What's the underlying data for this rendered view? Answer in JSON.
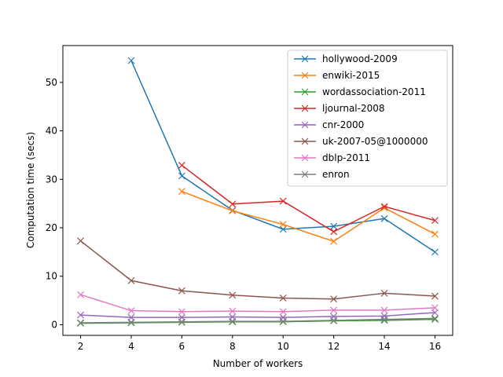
{
  "chart_data": {
    "type": "line",
    "title": "",
    "xlabel": "Number of workers",
    "ylabel": "Computation time (secs)",
    "xlim": [
      1.3,
      16.7
    ],
    "ylim": [
      -2.2,
      57.6
    ],
    "xticks": [
      2,
      4,
      6,
      8,
      10,
      12,
      14,
      16
    ],
    "yticks": [
      0,
      10,
      20,
      30,
      40,
      50
    ],
    "grid": false,
    "legend_position": "top-right",
    "marker": "x",
    "series": [
      {
        "name": "hollywood-2009",
        "color": "#1f77b4",
        "x": [
          4,
          6,
          8,
          10,
          12,
          14,
          16
        ],
        "y": [
          54.5,
          30.7,
          23.6,
          19.7,
          20.3,
          21.9,
          15.0
        ]
      },
      {
        "name": "enwiki-2015",
        "color": "#ff7f0e",
        "x": [
          6,
          8,
          10,
          12,
          14,
          16
        ],
        "y": [
          27.5,
          23.5,
          20.7,
          17.2,
          24.1,
          18.7
        ]
      },
      {
        "name": "wordassociation-2011",
        "color": "#2ca02c",
        "x": [
          2,
          4,
          6,
          8,
          10,
          12,
          14,
          16
        ],
        "y": [
          0.3,
          0.4,
          0.5,
          0.6,
          0.6,
          0.8,
          0.9,
          1.1
        ]
      },
      {
        "name": "ljournal-2008",
        "color": "#d62728",
        "x": [
          6,
          8,
          10,
          12,
          14,
          16
        ],
        "y": [
          32.9,
          24.9,
          25.5,
          19.2,
          24.4,
          21.5
        ]
      },
      {
        "name": "cnr-2000",
        "color": "#9467bd",
        "x": [
          2,
          4,
          6,
          8,
          10,
          12,
          14,
          16
        ],
        "y": [
          2.0,
          1.5,
          1.5,
          1.6,
          1.5,
          1.7,
          1.8,
          2.5
        ]
      },
      {
        "name": "uk-2007-05@1000000",
        "color": "#8c564b",
        "x": [
          2,
          4,
          6,
          8,
          10,
          12,
          14,
          16
        ],
        "y": [
          17.3,
          9.1,
          7.0,
          6.1,
          5.5,
          5.3,
          6.5,
          5.9
        ]
      },
      {
        "name": "dblp-2011",
        "color": "#e377c2",
        "x": [
          2,
          4,
          6,
          8,
          10,
          12,
          14,
          16
        ],
        "y": [
          6.2,
          2.9,
          2.7,
          2.8,
          2.7,
          3.0,
          3.0,
          3.5
        ]
      },
      {
        "name": "enron",
        "color": "#7f7f7f",
        "x": [
          2,
          4,
          6,
          8,
          10,
          12,
          14,
          16
        ],
        "y": [
          0.4,
          0.5,
          0.6,
          0.7,
          0.7,
          0.9,
          1.1,
          1.3
        ]
      }
    ]
  }
}
